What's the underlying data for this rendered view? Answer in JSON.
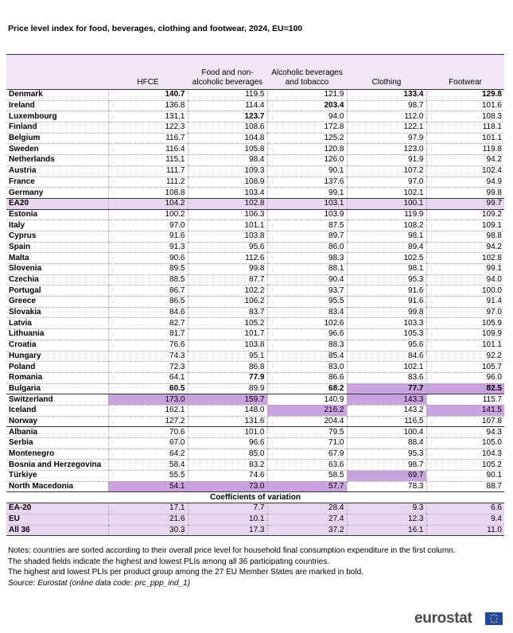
{
  "title": "Price level index for food, beverages, clothing and footwear, 2024, EU=100",
  "table": {
    "columns": [
      "HFCE",
      "Food and non-alcoholic beverages",
      "Alcoholic beverages and tobacco",
      "Clothing",
      "Footwear"
    ],
    "rows": [
      [
        "Denmark",
        "140.7",
        "119.5",
        "121.9",
        "133.4",
        "129.8"
      ],
      [
        "Ireland",
        "136.8",
        "114.4",
        "203.4",
        "98.7",
        "101.6"
      ],
      [
        "Luxembourg",
        "131.1",
        "123.7",
        "94.0",
        "112.0",
        "108.3"
      ],
      [
        "Finland",
        "122.3",
        "108.6",
        "172.8",
        "122.1",
        "118.1"
      ],
      [
        "Belgium",
        "116.7",
        "104.8",
        "125.2",
        "97.9",
        "101.1"
      ],
      [
        "Sweden",
        "116.4",
        "105.8",
        "120.8",
        "123.0",
        "119.8"
      ],
      [
        "Netherlands",
        "115.1",
        "98.4",
        "126.0",
        "91.9",
        "94.2"
      ],
      [
        "Austria",
        "111.7",
        "109.3",
        "90.1",
        "107.2",
        "102.4"
      ],
      [
        "France",
        "111.2",
        "108.9",
        "137.6",
        "97.0",
        "94.9"
      ],
      [
        "Germany",
        "108.8",
        "103.4",
        "99.1",
        "102.1",
        "99.8"
      ],
      [
        "EA20",
        "104.2",
        "102.8",
        "103.1",
        "100.1",
        "99.7"
      ],
      [
        "Estonia",
        "100.2",
        "106.3",
        "103.9",
        "119.9",
        "109.2"
      ],
      [
        "Italy",
        "97.0",
        "101.1",
        "87.5",
        "108.2",
        "109.1"
      ],
      [
        "Cyprus",
        "91.6",
        "103.8",
        "89.7",
        "98.1",
        "98.8"
      ],
      [
        "Spain",
        "91.3",
        "95.6",
        "86.0",
        "89.4",
        "94.2"
      ],
      [
        "Malta",
        "90.6",
        "112.6",
        "98.3",
        "102.5",
        "102.8"
      ],
      [
        "Slovenia",
        "89.5",
        "99.8",
        "88.1",
        "98.1",
        "99.1"
      ],
      [
        "Czechia",
        "88.5",
        "87.7",
        "90.4",
        "95.3",
        "94.0"
      ],
      [
        "Portugal",
        "86.7",
        "102.2",
        "93.7",
        "91.6",
        "100.0"
      ],
      [
        "Greece",
        "86.5",
        "106.2",
        "95.5",
        "91.6",
        "91.4"
      ],
      [
        "Slovakia",
        "84.6",
        "83.7",
        "83.4",
        "99.8",
        "97.0"
      ],
      [
        "Latvia",
        "82.7",
        "105.2",
        "102.6",
        "103.3",
        "105.9"
      ],
      [
        "Lithuania",
        "81.7",
        "101.7",
        "96.6",
        "105.3",
        "109.9"
      ],
      [
        "Croatia",
        "76.6",
        "103.8",
        "88.3",
        "95.6",
        "101.1"
      ],
      [
        "Hungary",
        "74.3",
        "95.1",
        "85.4",
        "84.6",
        "92.2"
      ],
      [
        "Poland",
        "72.3",
        "86.8",
        "83.0",
        "102.1",
        "105.7"
      ],
      [
        "Romania",
        "64.1",
        "77.9",
        "86.6",
        "83.6",
        "96.0"
      ],
      [
        "Bulgaria",
        "60.5",
        "89.9",
        "68.2",
        "77.7",
        "82.5"
      ],
      [
        "Switzerland",
        "173.0",
        "159.7",
        "140.9",
        "143.3",
        "115.7"
      ],
      [
        "Iceland",
        "162.1",
        "148.0",
        "216.2",
        "143.2",
        "141.5"
      ],
      [
        "Norway",
        "127.2",
        "131.6",
        "204.4",
        "116.5",
        "107.8"
      ],
      [
        "Albania",
        "70.6",
        "101.0",
        "79.5",
        "100.4",
        "94.3"
      ],
      [
        "Serbia",
        "67.0",
        "96.6",
        "71.0",
        "88.4",
        "105.0"
      ],
      [
        "Montenegro",
        "64.2",
        "85.0",
        "67.9",
        "95.3",
        "104.3"
      ],
      [
        "Bosnia and Herzegovina",
        "58.4",
        "83.2",
        "63.6",
        "98.7",
        "105.2"
      ],
      [
        "Türkiye",
        "55.5",
        "74.6",
        "58.5",
        "69.7",
        "90.1"
      ],
      [
        "North Macedonia",
        "54.1",
        "73.0",
        "57.7",
        "78.3",
        "88.7"
      ]
    ],
    "section": "Coefficients of variation",
    "cv_rows": [
      [
        "EA-20",
        "17.1",
        "7.7",
        "28.4",
        "9.3",
        "6.6"
      ],
      [
        "EU",
        "21.6",
        "10.1",
        "27.4",
        "12.3",
        "9.4"
      ],
      [
        "All 36",
        "30.3",
        "17.3",
        "37.2",
        "16.1",
        "11.0"
      ]
    ]
  },
  "notes": [
    "Notes: countries are sorted according to their overall price level for household final consumption expenditure in the first column.",
    "The shaded fields indicate the highest and lowest PLIs among all 36 participating countries.",
    "The highest and lowest PLIs per product group among the 27 EU Member States are marked in bold."
  ],
  "source": "Source: Eurostat (online data code: prc_ppp_ind_1)",
  "logo": "eurostat"
}
